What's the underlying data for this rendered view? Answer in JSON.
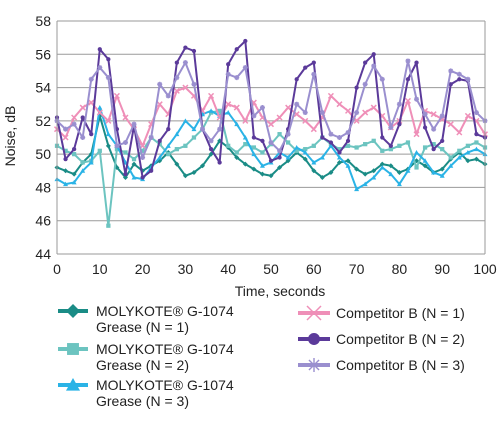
{
  "chart_data": {
    "type": "line",
    "xlabel": "Time, seconds",
    "ylabel": "Noise, dB",
    "xlim": [
      0,
      100
    ],
    "ylim": [
      44,
      58
    ],
    "x_ticks": [
      "0",
      "10",
      "20",
      "30",
      "40",
      "50",
      "60",
      "70",
      "80",
      "90",
      "100"
    ],
    "y_ticks": [
      "44",
      "46",
      "48",
      "50",
      "52",
      "54",
      "56",
      "58"
    ],
    "grid": "horizontal",
    "x": [
      0,
      2,
      4,
      6,
      8,
      10,
      12,
      14,
      16,
      18,
      20,
      22,
      24,
      26,
      28,
      30,
      32,
      34,
      36,
      38,
      40,
      42,
      44,
      46,
      48,
      50,
      52,
      54,
      56,
      58,
      60,
      62,
      64,
      66,
      68,
      70,
      72,
      74,
      76,
      78,
      80,
      82,
      84,
      86,
      88,
      90,
      92,
      94,
      96,
      98,
      100
    ],
    "series": [
      {
        "label_line1": "MOLYKOTE® G-1074",
        "label_line2": "Grease (N = 1)",
        "color": "#1a8c86",
        "marker": "diamond",
        "values": [
          49.2,
          49,
          48.8,
          49.5,
          50,
          52.3,
          50.5,
          49.2,
          48.6,
          49.4,
          49,
          49.3,
          49.6,
          50.1,
          49.4,
          48.7,
          48.9,
          49.3,
          50,
          50.8,
          50.4,
          49.8,
          49.4,
          49.1,
          48.8,
          48.7,
          49.2,
          49.6,
          50.1,
          49.7,
          49,
          48.6,
          48.9,
          49.5,
          49.6,
          49.1,
          48.8,
          49,
          49.4,
          49.3,
          48.9,
          49.1,
          49.6,
          49.3,
          48.9,
          49.1,
          49.7,
          50.1,
          49.6,
          49.7,
          49.4
        ]
      },
      {
        "label_line1": "MOLYKOTE® G-1074",
        "label_line2": "Grease (N = 2)",
        "color": "#6cc4c0",
        "marker": "square",
        "values": [
          50.5,
          50.2,
          50,
          49.5,
          49.6,
          50.2,
          45.7,
          50.3,
          50.1,
          49.7,
          50.2,
          51,
          50.6,
          50,
          50.3,
          50.5,
          51,
          51.5,
          52.5,
          52.6,
          50.5,
          50.1,
          50.6,
          50.4,
          50.1,
          50.6,
          51.2,
          50.7,
          50.2,
          50.3,
          50.5,
          51,
          50.6,
          50.3,
          50.5,
          50.4,
          50.6,
          50.8,
          50.2,
          50.3,
          50.5,
          50.7,
          49.2,
          50.4,
          50.6,
          50.3,
          49.8,
          50.2,
          50.5,
          50.7,
          50.4
        ]
      },
      {
        "label_line1": "MOLYKOTE® G-1074",
        "label_line2": "Grease (N = 3)",
        "color": "#2ab3e6",
        "marker": "triangle",
        "values": [
          48.5,
          48.2,
          48.3,
          49,
          49.5,
          52.8,
          51.2,
          50.5,
          49.5,
          48.6,
          48.5,
          49.2,
          49.8,
          50.5,
          51.2,
          52,
          51.5,
          52.4,
          52.6,
          52.3,
          52.5,
          51.8,
          51,
          50,
          49.3,
          49.5,
          50.1,
          49.8,
          50.4,
          50.1,
          49.5,
          49.8,
          50.5,
          49.8,
          49.3,
          47.9,
          48.2,
          48.6,
          49.2,
          48.8,
          48.2,
          49,
          50.1,
          49.6,
          48.9,
          48.7,
          49.3,
          49.8,
          50.1,
          50.3,
          50
        ]
      },
      {
        "label_line1": "Competitor B (N = 1)",
        "label_line2": "",
        "color": "#ef8fb8",
        "marker": "x",
        "values": [
          51.5,
          51,
          52.2,
          52.8,
          53.1,
          52.5,
          52,
          53.5,
          52.2,
          51.5,
          50.5,
          51.8,
          53,
          52.4,
          53.8,
          54,
          53.5,
          52.6,
          53.5,
          52.2,
          53,
          52.8,
          52,
          53.1,
          52.2,
          51.8,
          52.2,
          52.8,
          52.4,
          52,
          51.5,
          52.2,
          53.5,
          53,
          52.6,
          52,
          52.5,
          52.8,
          52.3,
          51.6,
          52,
          53.2,
          51.2,
          52.6,
          52.4,
          52.1,
          51.8,
          51.3,
          52.3,
          52,
          51.2
        ]
      },
      {
        "label_line1": "Competitor B (N = 2)",
        "label_line2": "",
        "color": "#5b3a9a",
        "marker": "circle",
        "values": [
          52.2,
          49.7,
          50.3,
          52.2,
          51.2,
          56.3,
          55.7,
          51.5,
          48.8,
          51.7,
          48.6,
          49,
          50.8,
          51.5,
          55.5,
          56.4,
          56.2,
          51.5,
          50.3,
          49.5,
          55.4,
          56.3,
          56.8,
          51,
          50.8,
          49.6,
          49.8,
          51.5,
          54.5,
          55.2,
          55.5,
          51,
          50.7,
          50.1,
          50.8,
          54,
          55.5,
          56,
          51,
          50.5,
          51.8,
          54.5,
          55.5,
          51.6,
          50.3,
          50.8,
          54.2,
          54.5,
          54.4,
          51.2,
          51
        ]
      },
      {
        "label_line1": "Competitor B (N = 3)",
        "label_line2": "",
        "color": "#9a8fcf",
        "marker": "asterisk",
        "values": [
          52,
          51.5,
          51.8,
          51,
          54.5,
          55.2,
          54.6,
          50.5,
          50.7,
          51.8,
          49.8,
          51,
          54.2,
          53.5,
          54.6,
          55.5,
          54.2,
          51.5,
          50.8,
          51.5,
          54.8,
          54.6,
          55.2,
          52.3,
          52.8,
          50.7,
          50.2,
          51.2,
          53,
          52.5,
          54.8,
          52.5,
          51.2,
          51,
          51.3,
          52.5,
          54.2,
          55.3,
          54.5,
          51.6,
          53,
          55.6,
          53.3,
          52.4,
          51.5,
          52.3,
          55,
          54.8,
          54.5,
          52.5,
          52
        ]
      }
    ]
  }
}
